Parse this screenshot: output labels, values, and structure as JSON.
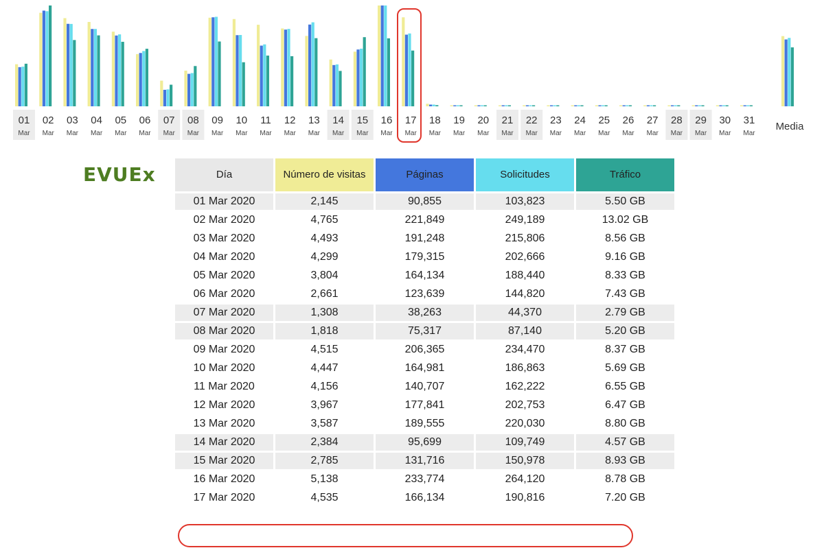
{
  "brand": "EVUEx",
  "colors": {
    "visitas": "#f0ec96",
    "paginas": "#4477dd",
    "solicitudes": "#66ddee",
    "trafico": "#2ea495",
    "weekend_bg": "#ececec",
    "highlight": "#e0362c",
    "brand": "#4e7d22"
  },
  "table": {
    "headers": [
      "Día",
      "Número de visitas",
      "Páginas",
      "Solicitudes",
      "Tráfico"
    ],
    "rows": [
      [
        "01 Mar 2020",
        "2,145",
        "90,855",
        "103,823",
        "5.50 GB"
      ],
      [
        "02 Mar 2020",
        "4,765",
        "221,849",
        "249,189",
        "13.02 GB"
      ],
      [
        "03 Mar 2020",
        "4,493",
        "191,248",
        "215,806",
        "8.56 GB"
      ],
      [
        "04 Mar 2020",
        "4,299",
        "179,315",
        "202,666",
        "9.16 GB"
      ],
      [
        "05 Mar 2020",
        "3,804",
        "164,134",
        "188,440",
        "8.33 GB"
      ],
      [
        "06 Mar 2020",
        "2,661",
        "123,639",
        "144,820",
        "7.43 GB"
      ],
      [
        "07 Mar 2020",
        "1,308",
        "38,263",
        "44,370",
        "2.79 GB"
      ],
      [
        "08 Mar 2020",
        "1,818",
        "75,317",
        "87,140",
        "5.20 GB"
      ],
      [
        "09 Mar 2020",
        "4,515",
        "206,365",
        "234,470",
        "8.37 GB"
      ],
      [
        "10 Mar 2020",
        "4,447",
        "164,981",
        "186,863",
        "5.69 GB"
      ],
      [
        "11 Mar 2020",
        "4,156",
        "140,707",
        "162,222",
        "6.55 GB"
      ],
      [
        "12 Mar 2020",
        "3,967",
        "177,841",
        "202,753",
        "6.47 GB"
      ],
      [
        "13 Mar 2020",
        "3,587",
        "189,555",
        "220,030",
        "8.80 GB"
      ],
      [
        "14 Mar 2020",
        "2,384",
        "95,699",
        "109,749",
        "4.57 GB"
      ],
      [
        "15 Mar 2020",
        "2,785",
        "131,716",
        "150,978",
        "8.93 GB"
      ],
      [
        "16 Mar 2020",
        "5,138",
        "233,774",
        "264,120",
        "8.78 GB"
      ],
      [
        "17 Mar 2020",
        "4,535",
        "166,134",
        "190,816",
        "7.20 GB"
      ]
    ],
    "weekend_rows": [
      0,
      6,
      7,
      13,
      14
    ],
    "highlighted_row": 16
  },
  "chart_data": {
    "type": "bar",
    "categories": [
      "01",
      "02",
      "03",
      "04",
      "05",
      "06",
      "07",
      "08",
      "09",
      "10",
      "11",
      "12",
      "13",
      "14",
      "15",
      "16",
      "17",
      "18",
      "19",
      "20",
      "21",
      "22",
      "23",
      "24",
      "25",
      "26",
      "27",
      "28",
      "29",
      "30",
      "31"
    ],
    "month_label": "Mar",
    "weekend_days": [
      "01",
      "07",
      "08",
      "14",
      "15",
      "21",
      "22",
      "28",
      "29"
    ],
    "highlighted_day": "17",
    "series": [
      {
        "key": "visitas",
        "values": [
          2145,
          4765,
          4493,
          4299,
          3804,
          2661,
          1308,
          1818,
          4515,
          4447,
          4156,
          3967,
          3587,
          2384,
          2785,
          5138,
          4535,
          130,
          0,
          0,
          0,
          0,
          0,
          0,
          0,
          0,
          0,
          0,
          0,
          0,
          0
        ]
      },
      {
        "key": "paginas",
        "values": [
          90855,
          221849,
          191248,
          179315,
          164134,
          123639,
          38263,
          75317,
          206365,
          164981,
          140707,
          177841,
          189555,
          95699,
          131716,
          233774,
          166134,
          4000,
          0,
          0,
          0,
          0,
          0,
          0,
          0,
          0,
          0,
          0,
          0,
          0,
          0
        ]
      },
      {
        "key": "solicitudes",
        "values": [
          103823,
          249189,
          215806,
          202666,
          188440,
          144820,
          44370,
          87140,
          234470,
          186863,
          162222,
          202753,
          220030,
          109749,
          150978,
          264120,
          190816,
          4500,
          0,
          0,
          0,
          0,
          0,
          0,
          0,
          0,
          0,
          0,
          0,
          0,
          0
        ]
      },
      {
        "key": "trafico",
        "values": [
          5.5,
          13.02,
          8.56,
          9.16,
          8.33,
          7.43,
          2.79,
          5.2,
          8.37,
          5.69,
          6.55,
          6.47,
          8.8,
          4.57,
          8.93,
          8.78,
          7.2,
          0.15,
          0,
          0,
          0,
          0,
          0,
          0,
          0,
          0,
          0,
          0,
          0,
          0,
          0
        ]
      }
    ],
    "average": {
      "label": "Media",
      "values": [
        3578,
        155012,
        179227,
        7.61
      ]
    }
  }
}
